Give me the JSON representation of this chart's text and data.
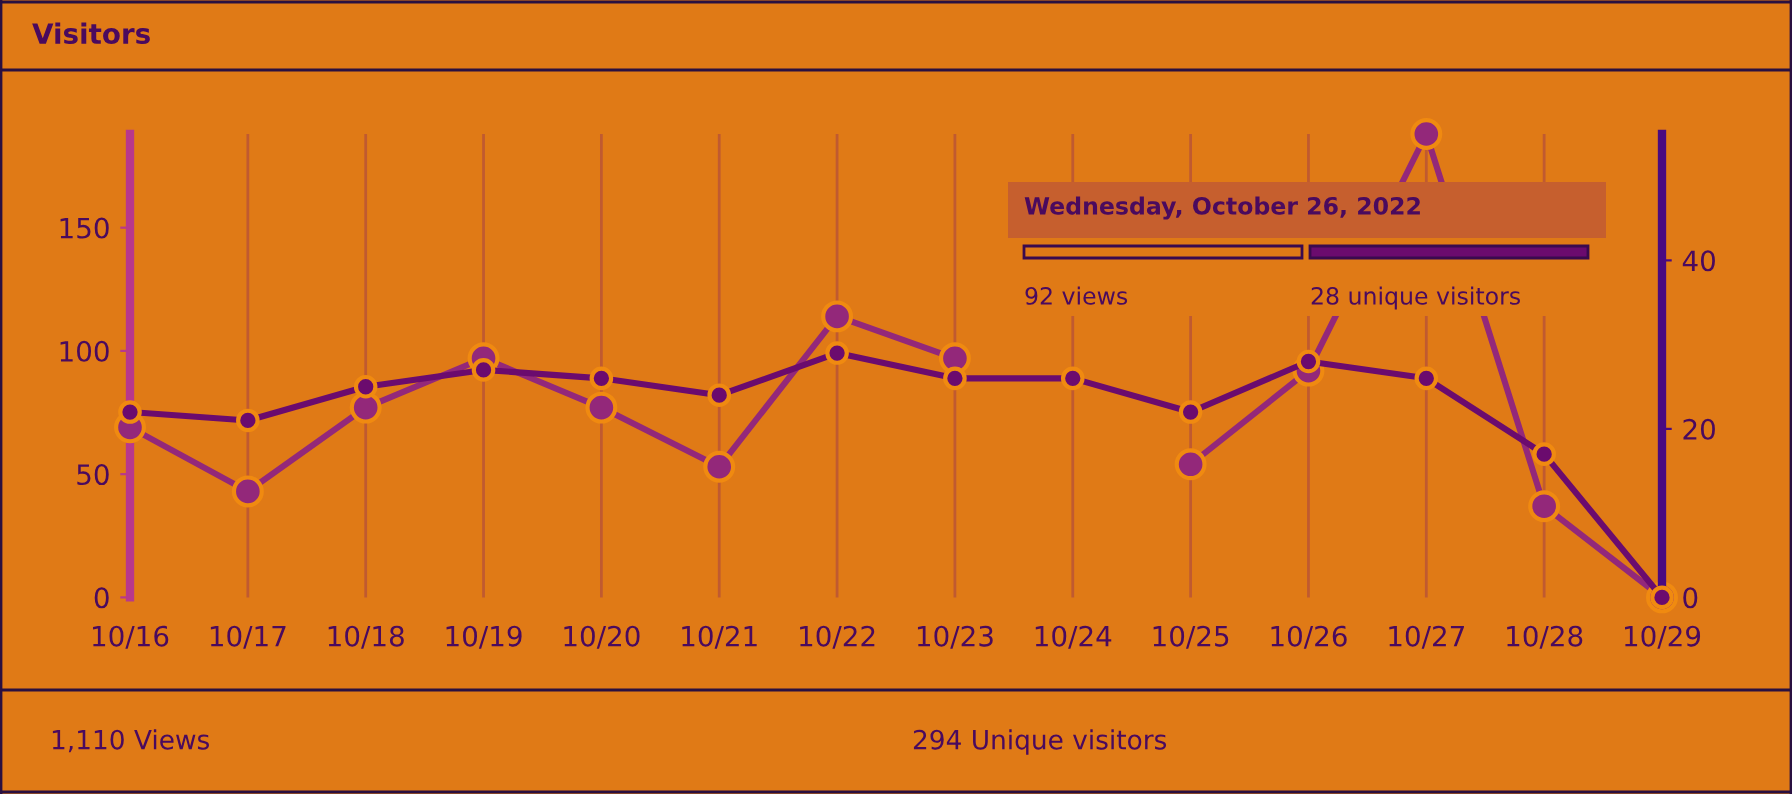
{
  "chart_data": {
    "type": "line",
    "title": "Visitors",
    "categories": [
      "10/16",
      "10/17",
      "10/18",
      "10/19",
      "10/20",
      "10/21",
      "10/22",
      "10/23",
      "10/24",
      "10/25",
      "10/26",
      "10/27",
      "10/28",
      "10/29"
    ],
    "series": [
      {
        "color": "#93287a",
        "values": [
          69,
          43,
          77,
          97,
          77,
          53,
          114,
          97,
          null,
          54,
          92,
          188,
          37,
          0
        ]
      },
      {
        "color": "#6b0b6e",
        "axis": "y2",
        "values": [
          22,
          21,
          25,
          27,
          26,
          24,
          29,
          26,
          26,
          22,
          28,
          26,
          17,
          0
        ]
      }
    ],
    "ylim": [
      0,
      188
    ],
    "yticks": [
      0,
      50,
      100,
      150
    ],
    "y2lim": [
      0,
      55
    ],
    "y2ticks": [
      0,
      20,
      40
    ],
    "grid": "x",
    "marker": "circle",
    "line_style": "solid",
    "annotations": [
      "Wednesday, October 26, 2022",
      "92 views",
      "28 unique visitors",
      "1,110 Views",
      "294 Unique visitors"
    ]
  }
}
